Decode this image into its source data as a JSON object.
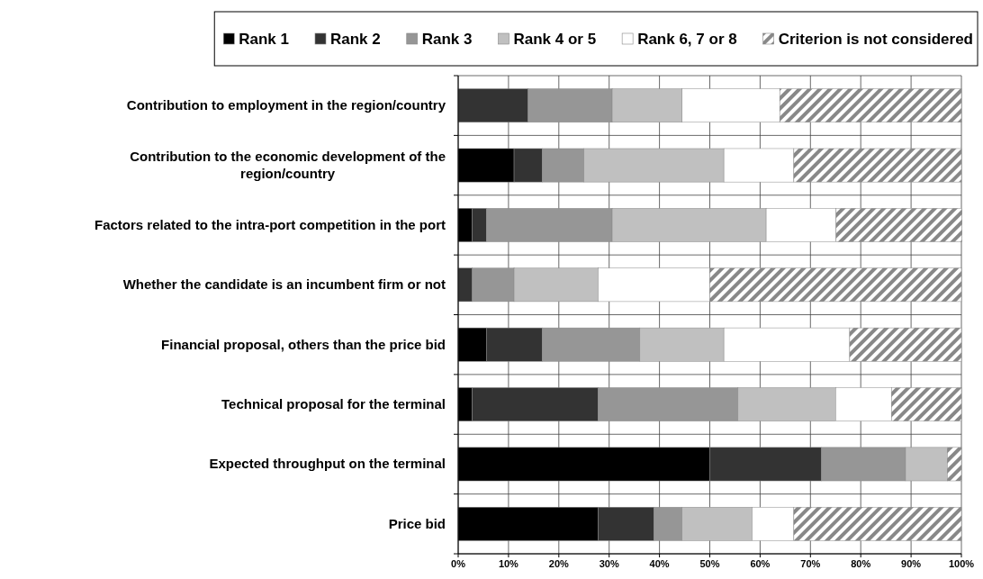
{
  "chart_data": {
    "type": "bar",
    "orientation": "horizontal",
    "stacked": true,
    "categories": [
      "Contribution to employment in the region/country",
      "Contribution to the economic development of the region/country",
      "Factors related to the intra-port competition in the port",
      "Whether the candidate is an incumbent firm or not",
      "Financial proposal, others than the price bid",
      "Technical proposal for the terminal",
      "Expected throughput on the terminal",
      "Price bid"
    ],
    "series": [
      {
        "name": "Rank 1",
        "color": "#000000",
        "values": [
          0,
          11.1,
          2.8,
          0,
          5.6,
          2.8,
          50,
          27.8
        ]
      },
      {
        "name": "Rank 2",
        "color": "#333333",
        "values": [
          13.9,
          5.6,
          2.8,
          2.8,
          11.1,
          25,
          22.2,
          11.1
        ]
      },
      {
        "name": "Rank 3",
        "color": "#969696",
        "values": [
          16.7,
          8.3,
          25,
          8.3,
          19.4,
          27.8,
          16.7,
          5.6
        ]
      },
      {
        "name": "Rank 4 or 5",
        "color": "#c0c0c0",
        "values": [
          13.9,
          27.8,
          30.6,
          16.7,
          16.7,
          19.4,
          8.3,
          13.9
        ]
      },
      {
        "name": "Rank 6, 7 or 8",
        "color": "#ffffff",
        "values": [
          19.4,
          13.9,
          13.9,
          22.2,
          25,
          11.1,
          0,
          8.3
        ]
      },
      {
        "name": "Criterion is not considered",
        "color": "#888888",
        "values": [
          36.1,
          33.3,
          25,
          50,
          22.2,
          13.9,
          2.8,
          33.3
        ]
      }
    ],
    "xlim": [
      0,
      100
    ],
    "xticks": [
      {
        "value": 0,
        "label": "0%"
      },
      {
        "value": 10,
        "label": "10%"
      },
      {
        "value": 20,
        "label": "20%"
      },
      {
        "value": 30,
        "label": "30%"
      },
      {
        "value": 40,
        "label": "40%"
      },
      {
        "value": 50,
        "label": "50%"
      },
      {
        "value": 60,
        "label": "60%"
      },
      {
        "value": 70,
        "label": "70%"
      },
      {
        "value": 80,
        "label": "80%"
      },
      {
        "value": 90,
        "label": "90%"
      },
      {
        "value": 100,
        "label": "100%"
      }
    ],
    "grid": true,
    "legend": "top"
  }
}
